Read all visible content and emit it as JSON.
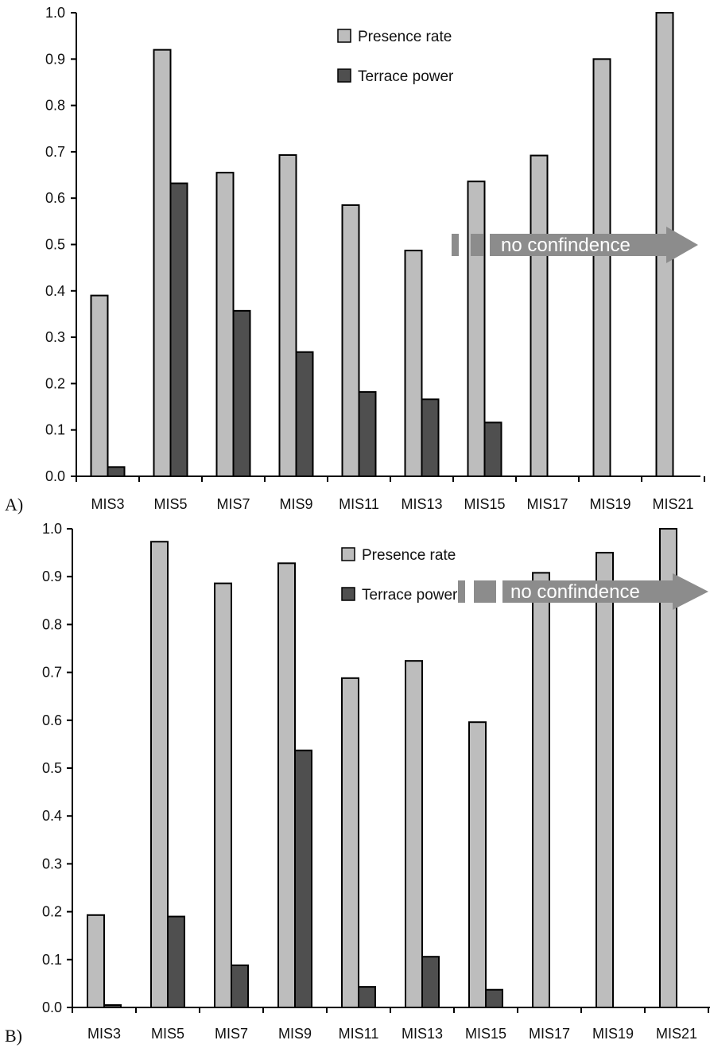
{
  "colors": {
    "presence": "#bdbdbd",
    "terrace": "#4f4f4f",
    "annotation": "#8c8c8c",
    "axis": "#000000"
  },
  "chart_data": [
    {
      "type": "bar",
      "panel_label": "A)",
      "categories": [
        "MIS3",
        "MIS5",
        "MIS7",
        "MIS9",
        "MIS11",
        "MIS13",
        "MIS15",
        "MIS17",
        "MIS19",
        "MIS21"
      ],
      "series": [
        {
          "name": "Presence rate",
          "values": [
            0.39,
            0.92,
            0.655,
            0.693,
            0.585,
            0.487,
            0.636,
            0.692,
            0.9,
            1.0
          ]
        },
        {
          "name": "Terrace power",
          "values": [
            0.02,
            0.632,
            0.357,
            0.268,
            0.182,
            0.166,
            0.116,
            null,
            null,
            null
          ]
        }
      ],
      "yticks": [
        "0.0",
        "0.1",
        "0.2",
        "0.3",
        "0.4",
        "0.5",
        "0.6",
        "0.7",
        "0.8",
        "0.9",
        "1.0"
      ],
      "ylim": [
        0,
        1
      ],
      "legend": "top-center",
      "annotation": {
        "text": "no confindence",
        "y": 0.5
      }
    },
    {
      "type": "bar",
      "panel_label": "B)",
      "categories": [
        "MIS3",
        "MIS5",
        "MIS7",
        "MIS9",
        "MIS11",
        "MIS13",
        "MIS15",
        "MIS17",
        "MIS19",
        "MIS21"
      ],
      "series": [
        {
          "name": "Presence rate",
          "values": [
            0.193,
            0.973,
            0.886,
            0.928,
            0.688,
            0.724,
            0.596,
            0.908,
            0.95,
            1.0
          ]
        },
        {
          "name": "Terrace power",
          "values": [
            0.005,
            0.19,
            0.088,
            0.537,
            0.043,
            0.106,
            0.037,
            null,
            null,
            null
          ]
        }
      ],
      "yticks": [
        "0.0",
        "0.1",
        "0.2",
        "0.3",
        "0.4",
        "0.5",
        "0.6",
        "0.7",
        "0.8",
        "0.9",
        "1.0"
      ],
      "ylim": [
        0,
        1
      ],
      "legend": "top-center",
      "annotation": {
        "text": "no confindence",
        "y": 0.5
      }
    }
  ]
}
